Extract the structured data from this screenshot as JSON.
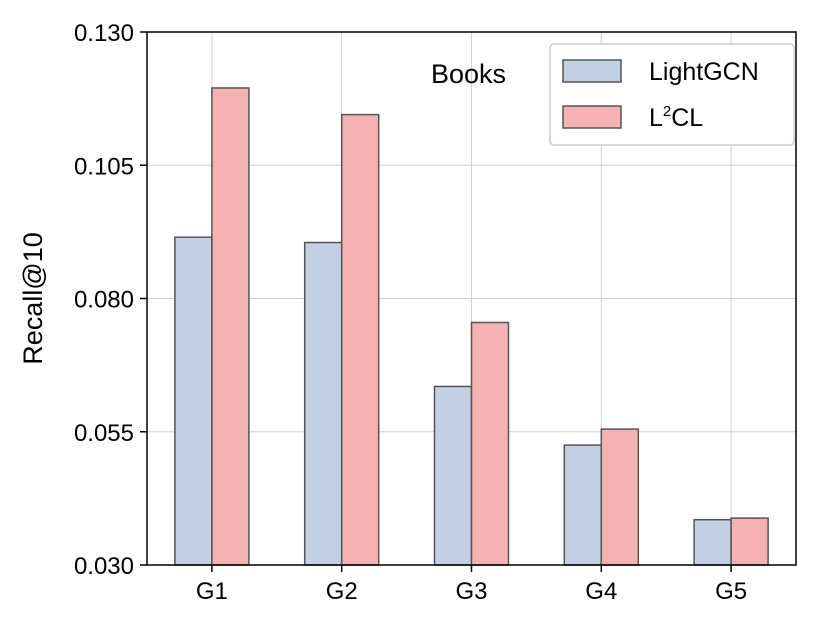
{
  "chart_data": {
    "type": "bar",
    "categories": [
      "G1",
      "G2",
      "G3",
      "G4",
      "G5"
    ],
    "series": [
      {
        "name": "LightGCN",
        "values": [
          0.0915,
          0.0905,
          0.0635,
          0.0525,
          0.0385
        ],
        "color": "#c2cfe5"
      },
      {
        "name": "L2CL",
        "values": [
          0.1195,
          0.1145,
          0.0755,
          0.0555,
          0.0388
        ],
        "color": "#f4b2b3"
      }
    ],
    "legend": {
      "lightgcn_label": "LightGCN",
      "l2cl_base": "L",
      "l2cl_sup": "2",
      "l2cl_tail": "CL",
      "placement": "top-right"
    },
    "annotation": "Books",
    "xlabel": "",
    "ylabel": "Recall@10",
    "ylim": [
      0.03,
      0.13
    ],
    "yticks": [
      0.03,
      0.055,
      0.08,
      0.105,
      0.13
    ],
    "ytick_labels": [
      "0.030",
      "0.055",
      "0.080",
      "0.105",
      "0.130"
    ],
    "grid": true,
    "edge_color": "#555555"
  }
}
